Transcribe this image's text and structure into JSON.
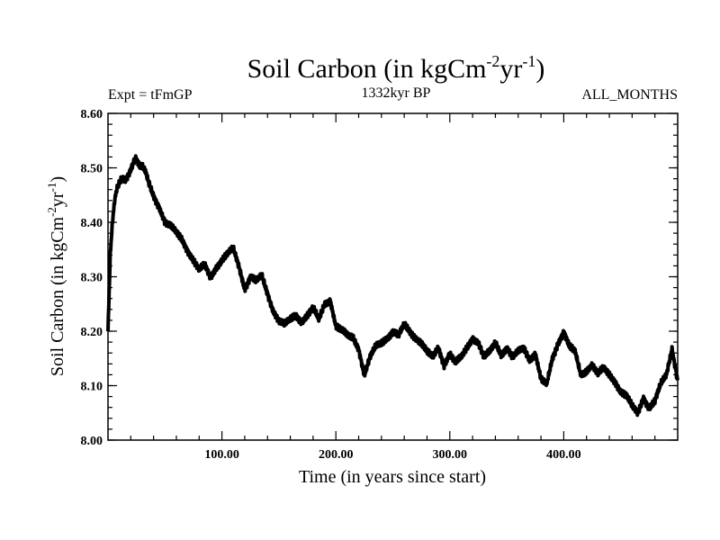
{
  "chart_data": {
    "type": "line",
    "title": {
      "main": "Soil Carbon (in kgCm",
      "sup1": "-2",
      "mid": "yr",
      "sup2": "-1",
      "end": ")"
    },
    "header_left": "Expt = tFmGP",
    "header_center": "1332kyr BP",
    "header_right": "ALL_MONTHS",
    "xlabel": "Time (in years since start)",
    "ylabel": {
      "main": "Soil Carbon (in kgCm",
      "sup1": "-2",
      "mid": "yr",
      "sup2": "-1",
      "end": ")"
    },
    "xlim": [
      0,
      500
    ],
    "ylim": [
      8.0,
      8.6
    ],
    "xticks": [
      100,
      200,
      300,
      400
    ],
    "xtick_labels": [
      "100.00",
      "200.00",
      "300.00",
      "400.00"
    ],
    "yticks": [
      8.0,
      8.1,
      8.2,
      8.3,
      8.4,
      8.5,
      8.6
    ],
    "ytick_labels": [
      "8.00",
      "8.10",
      "8.20",
      "8.30",
      "8.40",
      "8.50",
      "8.60"
    ],
    "grid": false,
    "series": [
      {
        "name": "Soil Carbon",
        "color": "#000000",
        "x": [
          0,
          2,
          4,
          6,
          8,
          10,
          12,
          15,
          18,
          20,
          22,
          24,
          26,
          28,
          30,
          33,
          36,
          40,
          45,
          50,
          55,
          60,
          65,
          70,
          75,
          80,
          85,
          90,
          95,
          100,
          105,
          110,
          115,
          120,
          125,
          130,
          135,
          140,
          145,
          150,
          155,
          160,
          165,
          170,
          175,
          180,
          185,
          190,
          195,
          200,
          205,
          210,
          215,
          220,
          225,
          230,
          235,
          240,
          245,
          250,
          255,
          260,
          265,
          270,
          275,
          280,
          285,
          290,
          295,
          300,
          305,
          310,
          315,
          320,
          325,
          330,
          335,
          340,
          345,
          350,
          355,
          360,
          365,
          370,
          375,
          380,
          385,
          390,
          395,
          400,
          405,
          410,
          415,
          420,
          425,
          430,
          435,
          440,
          445,
          450,
          455,
          460,
          465,
          470,
          475,
          480,
          485,
          490,
          495,
          500
        ],
        "values": [
          8.2,
          8.34,
          8.4,
          8.44,
          8.46,
          8.47,
          8.48,
          8.48,
          8.49,
          8.5,
          8.51,
          8.52,
          8.51,
          8.5,
          8.5,
          8.49,
          8.47,
          8.45,
          8.43,
          8.4,
          8.39,
          8.38,
          8.37,
          8.35,
          8.33,
          8.31,
          8.32,
          8.3,
          8.32,
          8.33,
          8.34,
          8.35,
          8.32,
          8.28,
          8.3,
          8.29,
          8.3,
          8.27,
          8.24,
          8.22,
          8.21,
          8.22,
          8.23,
          8.22,
          8.23,
          8.24,
          8.22,
          8.25,
          8.26,
          8.21,
          8.2,
          8.19,
          8.19,
          8.17,
          8.12,
          8.15,
          8.17,
          8.18,
          8.19,
          8.2,
          8.19,
          8.21,
          8.2,
          8.19,
          8.18,
          8.16,
          8.15,
          8.17,
          8.14,
          8.16,
          8.14,
          8.15,
          8.17,
          8.19,
          8.18,
          8.15,
          8.16,
          8.18,
          8.16,
          8.17,
          8.15,
          8.16,
          8.17,
          8.15,
          8.16,
          8.11,
          8.1,
          8.15,
          8.18,
          8.2,
          8.17,
          8.16,
          8.12,
          8.13,
          8.14,
          8.12,
          8.13,
          8.12,
          8.11,
          8.09,
          8.08,
          8.06,
          8.05,
          8.08,
          8.06,
          8.07,
          8.1,
          8.12,
          8.17,
          8.11
        ]
      }
    ]
  }
}
